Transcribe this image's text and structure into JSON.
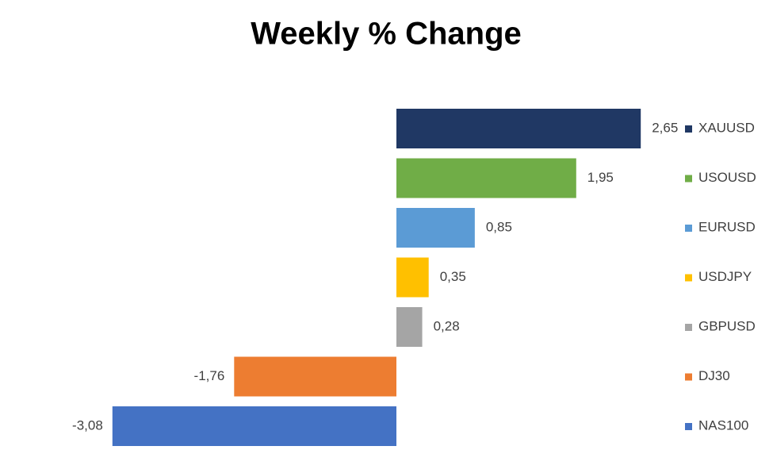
{
  "chart_data": {
    "type": "bar",
    "orientation": "horizontal",
    "title": "Weekly % Change",
    "series": [
      {
        "name": "XAUUSD",
        "color": "#203864",
        "values": [
          2.65
        ],
        "value_labels": [
          "2,65"
        ]
      },
      {
        "name": "USOUSD",
        "color": "#70ad47",
        "values": [
          1.95
        ],
        "value_labels": [
          "1,95"
        ]
      },
      {
        "name": "EURUSD",
        "color": "#5b9bd5",
        "values": [
          0.85
        ],
        "value_labels": [
          "0,85"
        ]
      },
      {
        "name": "USDJPY",
        "color": "#ffc000",
        "values": [
          0.35
        ],
        "value_labels": [
          "0,35"
        ]
      },
      {
        "name": "GBPUSD",
        "color": "#a5a5a5",
        "values": [
          0.28
        ],
        "value_labels": [
          "0,28"
        ]
      },
      {
        "name": "DJ30",
        "color": "#ed7d31",
        "values": [
          -1.76
        ],
        "value_labels": [
          "-1,76"
        ]
      },
      {
        "name": "NAS100",
        "color": "#4472c4",
        "values": [
          -3.08
        ],
        "value_labels": [
          "-3,08"
        ]
      }
    ],
    "legend": "right"
  }
}
